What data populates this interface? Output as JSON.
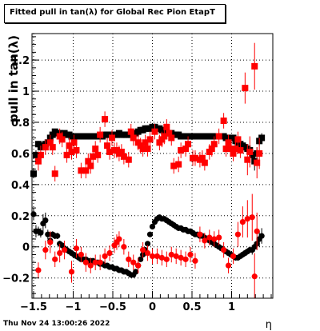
{
  "title": "Fitted pull in tan(λ) for Global Rec Pion EtapT",
  "timestamp": "Thu Nov 24 13:00:26 2022",
  "chart_data": {
    "type": "scatter",
    "xlabel": "η",
    "ylabel": "pull in tan(λ)",
    "xlim": [
      -1.52,
      1.52
    ],
    "ylim": [
      -0.33,
      1.37
    ],
    "xticks": [
      -1.5,
      -1,
      -0.5,
      0,
      0.5,
      1
    ],
    "xtick_labels": [
      "−1.5",
      "−1",
      "−0.5",
      "0",
      "0.5",
      "1"
    ],
    "yticks": [
      -0.2,
      0,
      0.2,
      0.4,
      0.6,
      0.8,
      1,
      1.2
    ],
    "ytick_labels": [
      "−0.2",
      "0",
      "0.2",
      "0.4",
      "0.6",
      "0.8",
      "1",
      "1.2"
    ],
    "grid": true,
    "series": [
      {
        "color": "#000000",
        "marker": "square",
        "x": [
          -1.5,
          -1.47,
          -1.44,
          -1.41,
          -1.38,
          -1.35,
          -1.32,
          -1.29,
          -1.26,
          -1.23,
          -1.2,
          -1.17,
          -1.14,
          -1.11,
          -1.08,
          -1.05,
          -1.02,
          -0.99,
          -0.96,
          -0.93,
          -0.9,
          -0.87,
          -0.84,
          -0.81,
          -0.78,
          -0.75,
          -0.72,
          -0.69,
          -0.66,
          -0.63,
          -0.6,
          -0.57,
          -0.54,
          -0.51,
          -0.48,
          -0.45,
          -0.42,
          -0.39,
          -0.36,
          -0.33,
          -0.3,
          -0.27,
          -0.24,
          -0.21,
          -0.18,
          -0.15,
          -0.12,
          -0.09,
          -0.06,
          -0.03,
          0.0,
          0.03,
          0.06,
          0.09,
          0.12,
          0.15,
          0.18,
          0.21,
          0.24,
          0.27,
          0.3,
          0.33,
          0.36,
          0.39,
          0.42,
          0.45,
          0.48,
          0.51,
          0.54,
          0.57,
          0.6,
          0.63,
          0.66,
          0.69,
          0.72,
          0.75,
          0.78,
          0.81,
          0.84,
          0.87,
          0.9,
          0.93,
          0.96,
          0.99,
          1.02,
          1.05,
          1.08,
          1.11,
          1.14,
          1.17,
          1.2,
          1.23,
          1.26,
          1.29,
          1.32,
          1.35,
          1.38
        ],
        "y": [
          0.47,
          0.59,
          0.66,
          0.64,
          0.65,
          0.66,
          0.67,
          0.7,
          0.72,
          0.74,
          0.73,
          0.73,
          0.72,
          0.73,
          0.72,
          0.72,
          0.71,
          0.71,
          0.71,
          0.71,
          0.71,
          0.71,
          0.71,
          0.71,
          0.71,
          0.71,
          0.71,
          0.71,
          0.71,
          0.71,
          0.72,
          0.72,
          0.72,
          0.72,
          0.72,
          0.72,
          0.73,
          0.72,
          0.72,
          0.72,
          0.72,
          0.72,
          0.73,
          0.73,
          0.74,
          0.75,
          0.75,
          0.76,
          0.76,
          0.76,
          0.77,
          0.77,
          0.76,
          0.76,
          0.75,
          0.74,
          0.73,
          0.73,
          0.73,
          0.72,
          0.72,
          0.72,
          0.71,
          0.71,
          0.71,
          0.71,
          0.71,
          0.71,
          0.71,
          0.71,
          0.71,
          0.71,
          0.71,
          0.71,
          0.71,
          0.71,
          0.71,
          0.71,
          0.71,
          0.71,
          0.71,
          0.7,
          0.7,
          0.7,
          0.7,
          0.68,
          0.67,
          0.66,
          0.65,
          0.64,
          0.63,
          0.62,
          0.59,
          0.55,
          0.6,
          0.68,
          0.7
        ],
        "err": [
          0.03,
          0.03,
          0.02,
          0.02,
          0.02,
          0.02,
          0.02,
          0.01,
          0.01,
          0.01,
          0.01,
          0.01,
          0.01,
          0.01,
          0.01,
          0.01,
          0.01,
          0.01,
          0.01,
          0.01,
          0.01,
          0.01,
          0.01,
          0.01,
          0.01,
          0.01,
          0.01,
          0.01,
          0.01,
          0.01,
          0.01,
          0.01,
          0.01,
          0.01,
          0.01,
          0.01,
          0.01,
          0.01,
          0.01,
          0.01,
          0.01,
          0.01,
          0.01,
          0.01,
          0.01,
          0.01,
          0.01,
          0.01,
          0.01,
          0.01,
          0.01,
          0.01,
          0.01,
          0.01,
          0.01,
          0.01,
          0.01,
          0.01,
          0.01,
          0.01,
          0.01,
          0.01,
          0.01,
          0.01,
          0.01,
          0.01,
          0.01,
          0.01,
          0.01,
          0.01,
          0.01,
          0.01,
          0.01,
          0.01,
          0.01,
          0.01,
          0.01,
          0.01,
          0.01,
          0.01,
          0.01,
          0.01,
          0.01,
          0.01,
          0.01,
          0.02,
          0.02,
          0.02,
          0.02,
          0.02,
          0.02,
          0.03,
          0.05,
          0.06,
          0.04,
          0.03,
          0.03
        ]
      },
      {
        "color": "#000000",
        "marker": "circle",
        "x": [
          -1.5,
          -1.47,
          -1.44,
          -1.41,
          -1.38,
          -1.35,
          -1.32,
          -1.29,
          -1.26,
          -1.23,
          -1.2,
          -1.17,
          -1.14,
          -1.11,
          -1.08,
          -1.05,
          -1.02,
          -0.99,
          -0.96,
          -0.93,
          -0.9,
          -0.87,
          -0.84,
          -0.81,
          -0.78,
          -0.75,
          -0.72,
          -0.69,
          -0.66,
          -0.63,
          -0.6,
          -0.57,
          -0.54,
          -0.51,
          -0.48,
          -0.45,
          -0.42,
          -0.39,
          -0.36,
          -0.33,
          -0.3,
          -0.27,
          -0.24,
          -0.21,
          -0.18,
          -0.15,
          -0.12,
          -0.09,
          -0.06,
          -0.03,
          0.0,
          0.03,
          0.06,
          0.09,
          0.12,
          0.15,
          0.18,
          0.21,
          0.24,
          0.27,
          0.3,
          0.33,
          0.36,
          0.39,
          0.42,
          0.45,
          0.48,
          0.51,
          0.54,
          0.57,
          0.6,
          0.63,
          0.66,
          0.69,
          0.72,
          0.75,
          0.78,
          0.81,
          0.84,
          0.87,
          0.9,
          0.93,
          0.96,
          0.99,
          1.02,
          1.05,
          1.08,
          1.11,
          1.14,
          1.17,
          1.2,
          1.23,
          1.26,
          1.29,
          1.32,
          1.35,
          1.38
        ],
        "y": [
          0.21,
          0.1,
          0.1,
          0.09,
          0.15,
          0.17,
          0.08,
          0.04,
          0.08,
          0.07,
          0.07,
          0.02,
          0.01,
          -0.01,
          -0.02,
          -0.03,
          -0.04,
          -0.05,
          -0.06,
          -0.07,
          -0.08,
          -0.08,
          -0.08,
          -0.09,
          -0.09,
          -0.09,
          -0.1,
          -0.1,
          -0.11,
          -0.11,
          -0.12,
          -0.12,
          -0.13,
          -0.13,
          -0.14,
          -0.14,
          -0.15,
          -0.15,
          -0.16,
          -0.16,
          -0.17,
          -0.18,
          -0.18,
          -0.16,
          -0.12,
          -0.08,
          -0.05,
          -0.02,
          0.02,
          0.08,
          0.13,
          0.16,
          0.18,
          0.19,
          0.18,
          0.18,
          0.17,
          0.16,
          0.15,
          0.14,
          0.13,
          0.12,
          0.12,
          0.11,
          0.11,
          0.1,
          0.1,
          0.09,
          0.08,
          0.08,
          0.07,
          0.07,
          0.06,
          0.05,
          0.04,
          0.03,
          0.02,
          0.01,
          0.0,
          -0.01,
          -0.02,
          -0.03,
          -0.04,
          -0.05,
          -0.06,
          -0.07,
          -0.07,
          -0.06,
          -0.05,
          -0.04,
          -0.03,
          -0.02,
          -0.02,
          0.0,
          0.02,
          0.05,
          0.07
        ],
        "err": [
          0.04,
          0.04,
          0.03,
          0.03,
          0.06,
          0.05,
          0.03,
          0.02,
          0.02,
          0.02,
          0.02,
          0.02,
          0.01,
          0.01,
          0.01,
          0.01,
          0.01,
          0.01,
          0.01,
          0.01,
          0.01,
          0.01,
          0.01,
          0.01,
          0.01,
          0.01,
          0.01,
          0.01,
          0.01,
          0.01,
          0.01,
          0.01,
          0.01,
          0.01,
          0.01,
          0.01,
          0.01,
          0.01,
          0.01,
          0.01,
          0.01,
          0.01,
          0.01,
          0.01,
          0.01,
          0.01,
          0.01,
          0.01,
          0.01,
          0.01,
          0.01,
          0.01,
          0.01,
          0.01,
          0.01,
          0.01,
          0.01,
          0.01,
          0.01,
          0.01,
          0.01,
          0.01,
          0.01,
          0.01,
          0.01,
          0.01,
          0.01,
          0.01,
          0.01,
          0.01,
          0.01,
          0.01,
          0.01,
          0.01,
          0.01,
          0.01,
          0.01,
          0.01,
          0.01,
          0.01,
          0.01,
          0.01,
          0.01,
          0.01,
          0.01,
          0.01,
          0.01,
          0.01,
          0.02,
          0.02,
          0.02,
          0.02,
          0.03,
          0.03,
          0.04,
          0.05,
          0.05
        ]
      },
      {
        "color": "#ff0000",
        "marker": "square",
        "x": [
          -1.44,
          -1.41,
          -1.35,
          -1.29,
          -1.26,
          -1.23,
          -1.17,
          -1.14,
          -1.08,
          -1.05,
          -1.02,
          -0.99,
          -0.96,
          -0.9,
          -0.84,
          -0.81,
          -0.78,
          -0.75,
          -0.72,
          -0.69,
          -0.66,
          -0.6,
          -0.57,
          -0.54,
          -0.51,
          -0.48,
          -0.45,
          -0.42,
          -0.39,
          -0.36,
          -0.3,
          -0.27,
          -0.24,
          -0.18,
          -0.15,
          -0.12,
          -0.09,
          -0.06,
          -0.03,
          0.03,
          0.09,
          0.12,
          0.15,
          0.18,
          0.21,
          0.24,
          0.27,
          0.33,
          0.36,
          0.42,
          0.45,
          0.51,
          0.54,
          0.6,
          0.63,
          0.66,
          0.72,
          0.75,
          0.78,
          0.84,
          0.9,
          0.93,
          0.96,
          0.99,
          1.02,
          1.05,
          1.08,
          1.11,
          1.17,
          1.2,
          1.23,
          1.29,
          1.32,
          1.35
        ],
        "y": [
          0.55,
          0.59,
          0.64,
          0.67,
          0.64,
          0.47,
          0.71,
          0.69,
          0.59,
          0.65,
          0.61,
          0.67,
          0.62,
          0.49,
          0.49,
          0.55,
          0.52,
          0.58,
          0.63,
          0.59,
          0.72,
          0.82,
          0.65,
          0.61,
          0.7,
          0.62,
          0.62,
          0.6,
          0.61,
          0.58,
          0.56,
          0.74,
          0.7,
          0.67,
          0.65,
          0.63,
          0.67,
          0.63,
          0.69,
          0.74,
          0.67,
          0.69,
          0.71,
          0.77,
          0.73,
          0.7,
          0.52,
          0.53,
          0.62,
          0.63,
          0.66,
          0.57,
          0.57,
          0.56,
          0.57,
          0.54,
          0.61,
          0.63,
          0.66,
          0.71,
          0.81,
          0.63,
          0.67,
          0.63,
          0.6,
          0.63,
          0.69,
          0.62,
          1.02,
          0.56,
          0.61,
          1.16,
          0.54,
          0.6
        ],
        "err": [
          0.06,
          0.06,
          0.05,
          0.05,
          0.05,
          0.05,
          0.05,
          0.05,
          0.05,
          0.05,
          0.05,
          0.05,
          0.05,
          0.05,
          0.05,
          0.05,
          0.05,
          0.05,
          0.05,
          0.05,
          0.05,
          0.05,
          0.05,
          0.05,
          0.05,
          0.05,
          0.05,
          0.05,
          0.05,
          0.05,
          0.05,
          0.05,
          0.05,
          0.05,
          0.05,
          0.05,
          0.05,
          0.05,
          0.05,
          0.05,
          0.05,
          0.05,
          0.05,
          0.05,
          0.05,
          0.05,
          0.05,
          0.05,
          0.05,
          0.05,
          0.05,
          0.05,
          0.05,
          0.05,
          0.05,
          0.05,
          0.05,
          0.05,
          0.05,
          0.05,
          0.05,
          0.05,
          0.05,
          0.05,
          0.05,
          0.05,
          0.05,
          0.05,
          0.1,
          0.1,
          0.1,
          0.15,
          0.1,
          0.1
        ]
      },
      {
        "color": "#ff0000",
        "marker": "circle",
        "x": [
          -1.44,
          -1.35,
          -1.29,
          -1.23,
          -1.17,
          -1.11,
          -1.02,
          -0.96,
          -0.9,
          -0.84,
          -0.78,
          -0.72,
          -0.66,
          -0.6,
          -0.54,
          -0.48,
          -0.45,
          -0.42,
          -0.36,
          -0.3,
          -0.24,
          -0.18,
          -0.12,
          -0.06,
          0.0,
          0.06,
          0.12,
          0.18,
          0.24,
          0.3,
          0.36,
          0.42,
          0.48,
          0.54,
          0.6,
          0.66,
          0.72,
          0.78,
          0.84,
          0.9,
          0.96,
          1.02,
          1.08,
          1.14,
          1.2,
          1.26,
          1.29,
          1.32
        ],
        "y": [
          -0.15,
          -0.02,
          0.03,
          -0.08,
          -0.04,
          -0.02,
          -0.16,
          -0.01,
          -0.05,
          -0.1,
          -0.12,
          -0.1,
          -0.1,
          -0.06,
          -0.04,
          0.01,
          0.03,
          0.05,
          0.0,
          -0.08,
          -0.1,
          -0.12,
          -0.02,
          -0.04,
          -0.06,
          -0.06,
          -0.07,
          -0.08,
          -0.05,
          -0.06,
          -0.07,
          -0.08,
          -0.05,
          -0.09,
          0.08,
          0.04,
          0.06,
          0.05,
          0.06,
          -0.02,
          -0.12,
          -0.06,
          0.08,
          0.16,
          0.18,
          0.19,
          -0.19,
          0.1
        ],
        "err": [
          0.05,
          0.06,
          0.07,
          0.05,
          0.06,
          0.06,
          0.07,
          0.06,
          0.05,
          0.06,
          0.05,
          0.05,
          0.05,
          0.05,
          0.05,
          0.05,
          0.05,
          0.05,
          0.05,
          0.05,
          0.05,
          0.05,
          0.05,
          0.05,
          0.05,
          0.05,
          0.05,
          0.05,
          0.05,
          0.05,
          0.05,
          0.05,
          0.05,
          0.05,
          0.05,
          0.05,
          0.05,
          0.05,
          0.05,
          0.05,
          0.05,
          0.05,
          0.08,
          0.1,
          0.12,
          0.15,
          0.15,
          0.12
        ]
      }
    ]
  }
}
